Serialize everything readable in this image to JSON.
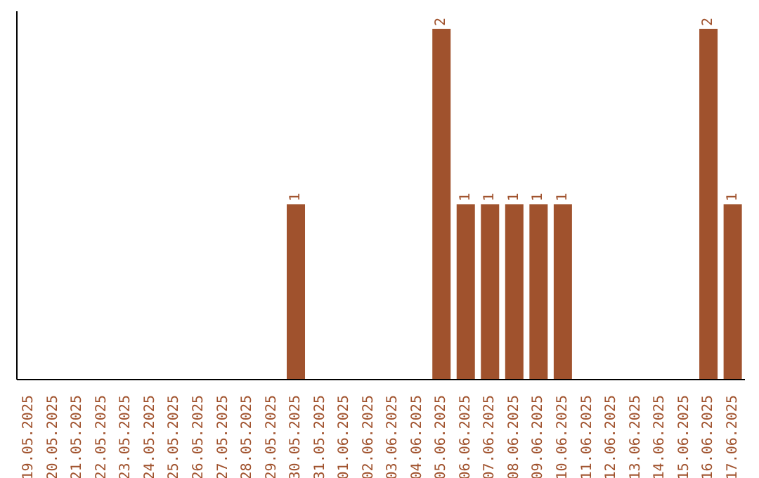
{
  "chart_data": {
    "type": "bar",
    "categories": [
      "19.05.2025",
      "20.05.2025",
      "21.05.2025",
      "22.05.2025",
      "23.05.2025",
      "24.05.2025",
      "25.05.2025",
      "26.05.2025",
      "27.05.2025",
      "28.05.2025",
      "29.05.2025",
      "30.05.2025",
      "31.05.2025",
      "01.06.2025",
      "02.06.2025",
      "03.06.2025",
      "04.06.2025",
      "05.06.2025",
      "06.06.2025",
      "07.06.2025",
      "08.06.2025",
      "09.06.2025",
      "10.06.2025",
      "11.06.2025",
      "12.06.2025",
      "13.06.2025",
      "14.06.2025",
      "15.06.2025",
      "16.06.2025",
      "17.06.2025"
    ],
    "values": [
      0,
      0,
      0,
      0,
      0,
      0,
      0,
      0,
      0,
      0,
      0,
      1,
      0,
      0,
      0,
      0,
      0,
      2,
      1,
      1,
      1,
      1,
      1,
      0,
      0,
      0,
      0,
      0,
      2,
      1
    ],
    "value_labels": [
      null,
      null,
      null,
      null,
      null,
      null,
      null,
      null,
      null,
      null,
      null,
      "1",
      null,
      null,
      null,
      null,
      null,
      "2",
      "1",
      "1",
      "1",
      "1",
      "1",
      null,
      null,
      null,
      null,
      null,
      "2",
      "1"
    ],
    "color": "#a0522d",
    "grid": false,
    "tick_labels": "x"
  }
}
